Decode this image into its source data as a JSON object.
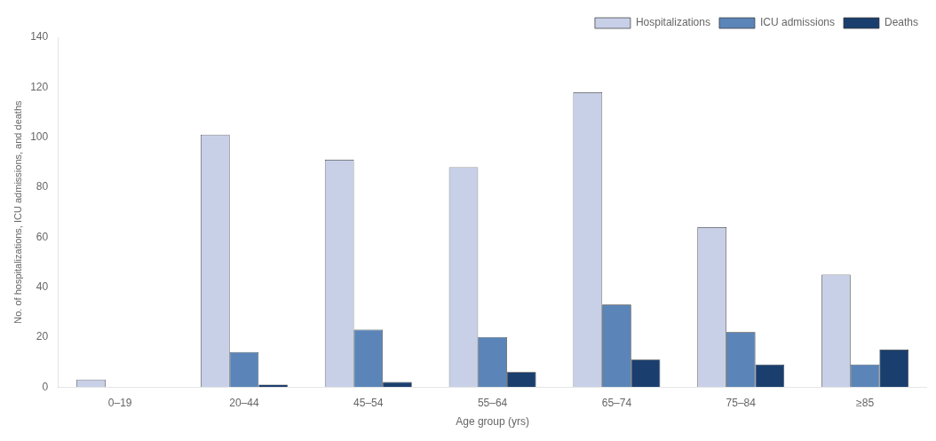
{
  "chart_data": {
    "type": "bar",
    "categories": [
      "0–19",
      "20–44",
      "45–54",
      "55–64",
      "65–74",
      "75–84",
      "≥85"
    ],
    "series": [
      {
        "name": "Hospitalizations",
        "color": "#c8d0e8",
        "values": [
          3,
          101,
          91,
          88,
          118,
          64,
          45
        ]
      },
      {
        "name": "ICU admissions",
        "color": "#5b85b8",
        "values": [
          0,
          14,
          23,
          20,
          33,
          22,
          9
        ]
      },
      {
        "name": "Deaths",
        "color": "#1a3f6e",
        "values": [
          0,
          1,
          2,
          6,
          11,
          9,
          15
        ]
      }
    ],
    "xlabel": "Age group (yrs)",
    "ylabel": "No. of hospitalizations, ICU admissions, and deaths",
    "ylim": [
      0,
      140
    ],
    "yticks": [
      0,
      20,
      40,
      60,
      80,
      100,
      120,
      140
    ],
    "grid": false,
    "legend": "upper right"
  }
}
